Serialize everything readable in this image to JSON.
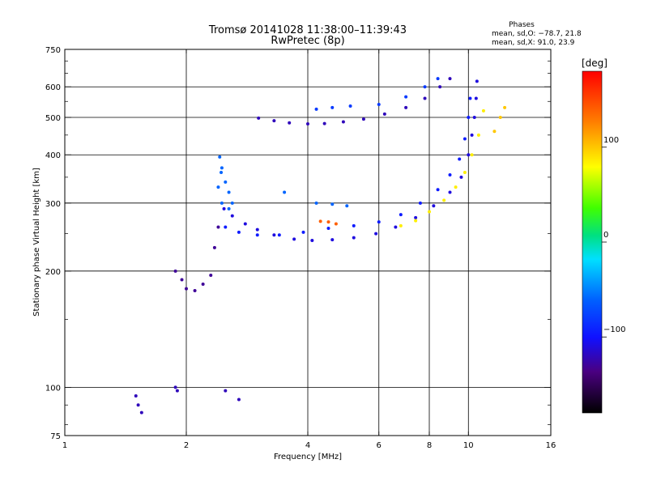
{
  "chart_data": {
    "type": "scatter",
    "title": "Tromsø 20141028 11:38:00–11:39:43",
    "subtitle": "RwPretec (8p)",
    "stats": {
      "heading": "Phases",
      "line_o": "mean, sd,O: −78.7, 21.8",
      "line_x": "mean, sd,X:  91.0, 23.9"
    },
    "xlabel": "Frequency [MHz]",
    "ylabel": "Stationary phase Virtual Height [km]",
    "x_scale": "log",
    "y_scale": "log",
    "xlim": [
      1,
      16
    ],
    "ylim": [
      75,
      750
    ],
    "x_ticks": [
      1,
      2,
      4,
      6,
      8,
      10,
      16
    ],
    "x_tick_labels": [
      "1",
      "2",
      "4",
      "6",
      "8",
      "10",
      "16"
    ],
    "y_ticks": [
      75,
      100,
      200,
      300,
      400,
      500,
      600,
      750
    ],
    "y_tick_labels": [
      "75",
      "100",
      "200",
      "300",
      "400",
      "500",
      "600",
      "750"
    ],
    "x_grid": [
      2,
      4,
      6,
      8,
      10
    ],
    "y_grid": [
      100,
      200,
      300,
      400,
      500,
      600
    ],
    "colorbar": {
      "label": "[deg]",
      "range": [
        -180,
        180
      ],
      "ticks": [
        100,
        0,
        -100
      ],
      "tick_labels": [
        "100",
        "0",
        "−100"
      ]
    },
    "series": [
      {
        "color_value": -120,
        "points": [
          [
            3.02,
            498
          ],
          [
            3.3,
            490
          ],
          [
            3.6,
            484
          ],
          [
            4.0,
            481
          ],
          [
            4.4,
            482
          ],
          [
            4.9,
            487
          ],
          [
            5.5,
            495
          ],
          [
            6.2,
            510
          ],
          [
            7.0,
            530
          ],
          [
            7.8,
            560
          ],
          [
            8.5,
            600
          ],
          [
            9.0,
            630
          ]
        ]
      },
      {
        "color_value": -80,
        "points": [
          [
            4.2,
            525
          ],
          [
            4.6,
            530
          ],
          [
            5.1,
            535
          ],
          [
            6.0,
            540
          ],
          [
            7.0,
            565
          ],
          [
            7.8,
            600
          ],
          [
            8.4,
            630
          ]
        ]
      },
      {
        "color_value": -110,
        "points": [
          [
            2.48,
            290
          ],
          [
            2.6,
            278
          ],
          [
            2.8,
            265
          ],
          [
            3.0,
            256
          ],
          [
            3.3,
            248
          ],
          [
            3.7,
            242
          ],
          [
            4.1,
            240
          ],
          [
            4.6,
            241
          ],
          [
            5.2,
            244
          ],
          [
            5.9,
            250
          ],
          [
            6.6,
            260
          ],
          [
            7.4,
            275
          ],
          [
            8.2,
            295
          ],
          [
            9.0,
            320
          ],
          [
            9.6,
            350
          ],
          [
            10.0,
            400
          ],
          [
            10.2,
            450
          ],
          [
            10.35,
            500
          ],
          [
            10.45,
            560
          ],
          [
            10.5,
            620
          ]
        ]
      },
      {
        "color_value": -95,
        "points": [
          [
            2.5,
            260
          ],
          [
            2.7,
            252
          ],
          [
            3.0,
            248
          ],
          [
            3.4,
            248
          ],
          [
            3.9,
            252
          ],
          [
            4.5,
            258
          ],
          [
            5.2,
            262
          ],
          [
            6.0,
            268
          ],
          [
            6.8,
            280
          ],
          [
            7.6,
            300
          ],
          [
            8.4,
            325
          ],
          [
            9.0,
            355
          ],
          [
            9.5,
            390
          ],
          [
            9.8,
            440
          ],
          [
            10.0,
            500
          ],
          [
            10.1,
            560
          ]
        ]
      },
      {
        "color_value": 85,
        "points": [
          [
            6.8,
            262
          ],
          [
            7.4,
            270
          ],
          [
            8.0,
            285
          ],
          [
            8.7,
            305
          ],
          [
            9.3,
            330
          ],
          [
            9.8,
            360
          ],
          [
            10.2,
            400
          ],
          [
            10.6,
            450
          ],
          [
            10.9,
            520
          ]
        ]
      },
      {
        "color_value": -60,
        "points": [
          [
            2.42,
            395
          ],
          [
            2.45,
            370
          ],
          [
            2.5,
            340
          ],
          [
            2.55,
            320
          ],
          [
            2.6,
            300
          ],
          [
            2.55,
            290
          ],
          [
            2.45,
            300
          ],
          [
            2.4,
            330
          ],
          [
            2.44,
            360
          ]
        ]
      },
      {
        "color_value": -130,
        "points": [
          [
            1.88,
            200
          ],
          [
            1.95,
            190
          ],
          [
            2.0,
            180
          ],
          [
            2.1,
            178
          ],
          [
            2.2,
            185
          ],
          [
            2.3,
            195
          ],
          [
            2.35,
            230
          ],
          [
            2.4,
            260
          ]
        ]
      },
      {
        "color_value": -60,
        "points": [
          [
            3.5,
            320
          ],
          [
            4.2,
            300
          ],
          [
            4.6,
            298
          ],
          [
            5.0,
            295
          ]
        ]
      },
      {
        "color_value": 140,
        "points": [
          [
            4.3,
            269
          ],
          [
            4.5,
            268
          ],
          [
            4.7,
            265
          ]
        ]
      },
      {
        "color_value": -120,
        "points": [
          [
            1.5,
            95
          ],
          [
            1.52,
            90
          ],
          [
            1.55,
            86
          ],
          [
            1.88,
            100
          ],
          [
            1.9,
            98
          ],
          [
            2.5,
            98
          ],
          [
            2.7,
            93
          ]
        ]
      },
      {
        "color_value": 100,
        "points": [
          [
            11.6,
            460
          ],
          [
            12.0,
            500
          ],
          [
            12.3,
            530
          ]
        ]
      }
    ]
  }
}
